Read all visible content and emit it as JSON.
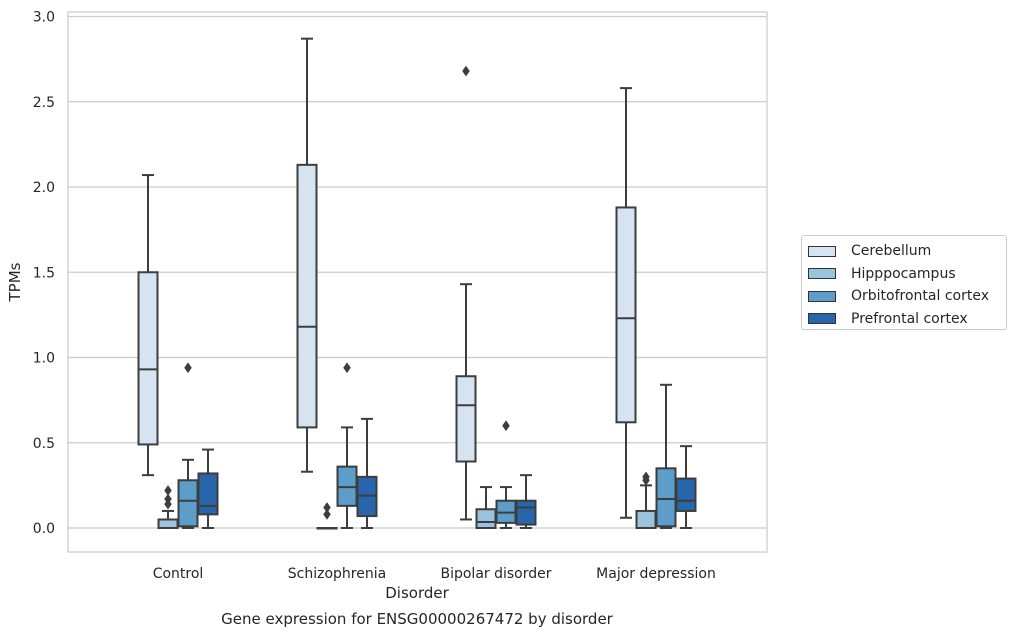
{
  "caption": "Gene expression for ENSG00000267472 by disorder",
  "chart_data": {
    "type": "box",
    "xlabel": "Disorder",
    "ylabel": "TPMs",
    "ylim": [
      -0.14,
      3.02
    ],
    "yticks": [
      "0.0",
      "0.5",
      "1.0",
      "1.5",
      "2.0",
      "2.5",
      "3.0"
    ],
    "grid": "horizontal",
    "legend_position": "right",
    "categories": [
      "Control",
      "Schizophrenia",
      "Bipolar disorder",
      "Major depression"
    ],
    "series": [
      {
        "name": "Cerebellum",
        "color": "#d6e4f2",
        "boxes": [
          {
            "whislo": 0.31,
            "q1": 0.49,
            "med": 0.93,
            "q3": 1.5,
            "whishi": 2.07,
            "fliers": []
          },
          {
            "whislo": 0.33,
            "q1": 0.59,
            "med": 1.18,
            "q3": 2.13,
            "whishi": 2.87,
            "fliers": []
          },
          {
            "whislo": 0.05,
            "q1": 0.39,
            "med": 0.72,
            "q3": 0.89,
            "whishi": 1.43,
            "fliers": [
              2.68
            ]
          },
          {
            "whislo": 0.06,
            "q1": 0.62,
            "med": 1.23,
            "q3": 1.88,
            "whishi": 2.58,
            "fliers": []
          }
        ]
      },
      {
        "name": "Hipppocampus",
        "color": "#9ac3dd",
        "boxes": [
          {
            "whislo": 0.0,
            "q1": 0.0,
            "med": 0.0,
            "q3": 0.05,
            "whishi": 0.1,
            "fliers": [
              0.14,
              0.17,
              0.22
            ]
          },
          {
            "whislo": 0.0,
            "q1": 0.0,
            "med": 0.0,
            "q3": 0.0,
            "whishi": 0.0,
            "fliers": [
              0.08,
              0.12
            ]
          },
          {
            "whislo": 0.0,
            "q1": 0.0,
            "med": 0.035,
            "q3": 0.11,
            "whishi": 0.24,
            "fliers": []
          },
          {
            "whislo": 0.0,
            "q1": 0.0,
            "med": 0.0,
            "q3": 0.1,
            "whishi": 0.25,
            "fliers": [
              0.28,
              0.3
            ]
          }
        ]
      },
      {
        "name": "Orbitofrontal cortex",
        "color": "#5c9ec9",
        "boxes": [
          {
            "whislo": 0.0,
            "q1": 0.01,
            "med": 0.16,
            "q3": 0.28,
            "whishi": 0.4,
            "fliers": [
              0.94
            ]
          },
          {
            "whislo": 0.0,
            "q1": 0.13,
            "med": 0.24,
            "q3": 0.36,
            "whishi": 0.59,
            "fliers": [
              0.94
            ]
          },
          {
            "whislo": 0.0,
            "q1": 0.03,
            "med": 0.09,
            "q3": 0.16,
            "whishi": 0.24,
            "fliers": [
              0.6
            ]
          },
          {
            "whislo": 0.0,
            "q1": 0.01,
            "med": 0.17,
            "q3": 0.35,
            "whishi": 0.84,
            "fliers": []
          }
        ]
      },
      {
        "name": "Prefrontal cortex",
        "color": "#2766ab",
        "boxes": [
          {
            "whislo": 0.0,
            "q1": 0.08,
            "med": 0.13,
            "q3": 0.32,
            "whishi": 0.46,
            "fliers": []
          },
          {
            "whislo": 0.0,
            "q1": 0.07,
            "med": 0.19,
            "q3": 0.3,
            "whishi": 0.64,
            "fliers": []
          },
          {
            "whislo": 0.0,
            "q1": 0.02,
            "med": 0.12,
            "q3": 0.16,
            "whishi": 0.31,
            "fliers": []
          },
          {
            "whislo": 0.0,
            "q1": 0.1,
            "med": 0.16,
            "q3": 0.29,
            "whishi": 0.48,
            "fliers": []
          }
        ]
      }
    ]
  }
}
